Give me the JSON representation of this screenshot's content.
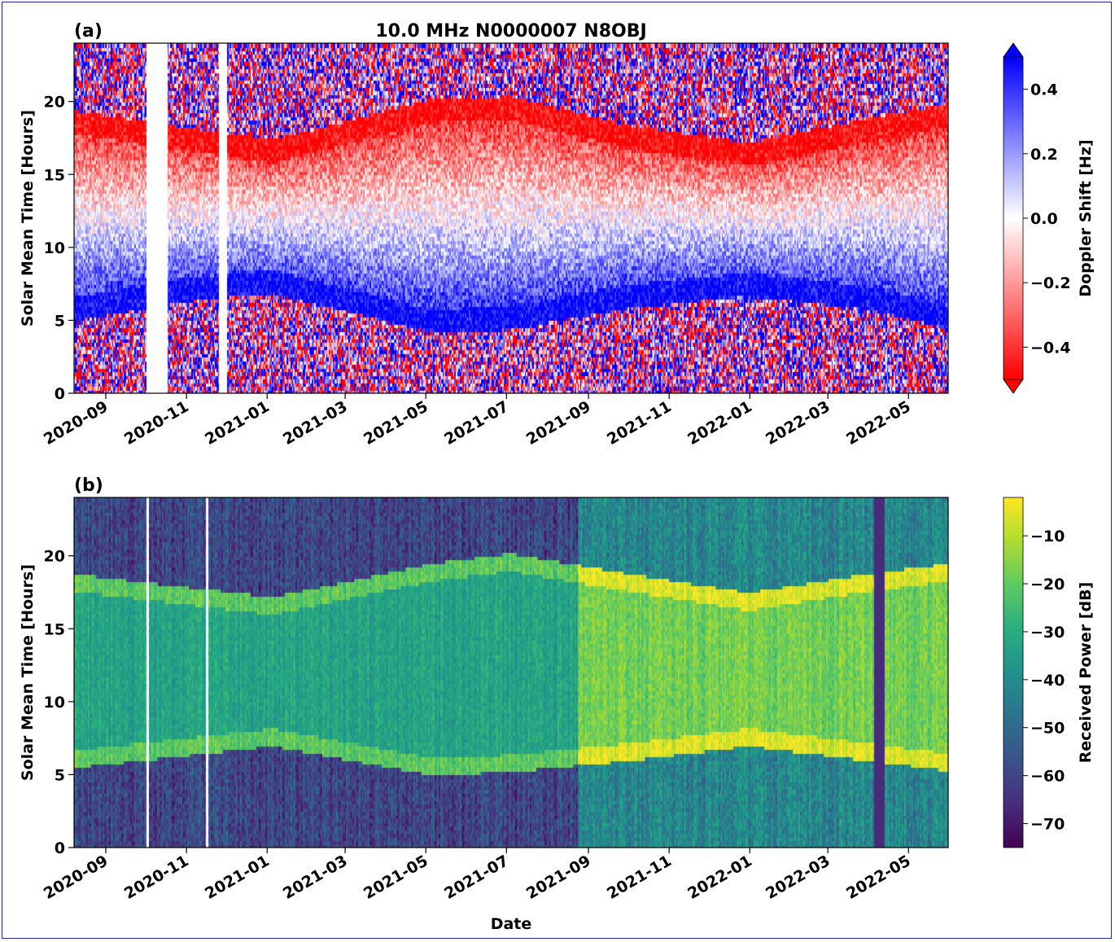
{
  "chart_data": [
    {
      "panel": "(a)",
      "type": "heatmap",
      "title": "10.0 MHz N0000007 N8OBJ",
      "ylabel": "Solar Mean Time [Hours]",
      "xlabel": "",
      "ylim": [
        0,
        24
      ],
      "y_ticks": [
        "0",
        "5",
        "10",
        "15",
        "20"
      ],
      "x_ticks": [
        "2020-09",
        "2020-11",
        "2021-01",
        "2021-03",
        "2021-05",
        "2021-07",
        "2021-09",
        "2021-11",
        "2022-01",
        "2022-03",
        "2022-05"
      ],
      "x_range": [
        "2020-08-08",
        "2022-05-31"
      ],
      "colorbar": {
        "label": "Doppler Shift [Hz]",
        "colormap": "bwr_r",
        "range": [
          -0.5,
          0.5
        ],
        "extend": "both",
        "ticks": [
          "−0.4",
          "−0.2",
          "0.0",
          "0.2",
          "0.4"
        ],
        "tick_values": [
          -0.4,
          -0.2,
          0.0,
          0.2,
          0.4
        ]
      },
      "features": {
        "blue_band_lower_edge_hours": [
          [
            0,
            5.4
          ],
          [
            90,
            6.8
          ],
          [
            150,
            7.3
          ],
          [
            270,
            4.6
          ],
          [
            330,
            4.8
          ],
          [
            420,
            6.3
          ],
          [
            510,
            7.1
          ],
          [
            600,
            6.2
          ],
          [
            660,
            4.9
          ]
        ],
        "red_band_upper_edge_hours": [
          [
            0,
            19.0
          ],
          [
            150,
            17.0
          ],
          [
            270,
            19.8
          ],
          [
            330,
            20.0
          ],
          [
            420,
            18.0
          ],
          [
            510,
            16.8
          ],
          [
            600,
            18.5
          ],
          [
            660,
            19.5
          ]
        ],
        "data_gaps_days": [
          55,
          70,
          110,
          115
        ]
      },
      "colors": {
        "positive": "#0000ff",
        "zero": "#ffffff",
        "negative": "#ff0000"
      }
    },
    {
      "panel": "(b)",
      "type": "heatmap",
      "title": "",
      "ylabel": "Solar Mean Time [Hours]",
      "xlabel": "Date",
      "ylim": [
        0,
        24
      ],
      "y_ticks": [
        "0",
        "5",
        "10",
        "15",
        "20"
      ],
      "x_ticks": [
        "2020-09",
        "2020-11",
        "2021-01",
        "2021-03",
        "2021-05",
        "2021-07",
        "2021-09",
        "2021-11",
        "2022-01",
        "2022-03",
        "2022-05"
      ],
      "x_range": [
        "2020-08-08",
        "2022-05-31"
      ],
      "colorbar": {
        "label": "Received Power [dB]",
        "colormap": "viridis",
        "range": [
          -75,
          -2
        ],
        "extend": "neither",
        "ticks": [
          "−10",
          "−20",
          "−30",
          "−40",
          "−50",
          "−60",
          "−70"
        ],
        "tick_values": [
          -10,
          -20,
          -30,
          -40,
          -50,
          -60,
          -70
        ]
      },
      "features": {
        "daytime_start_hours": [
          [
            0,
            5.5
          ],
          [
            150,
            7.0
          ],
          [
            270,
            5.0
          ],
          [
            330,
            5.2
          ],
          [
            420,
            6.0
          ],
          [
            510,
            7.0
          ],
          [
            600,
            6.0
          ],
          [
            660,
            5.3
          ]
        ],
        "daytime_end_hours": [
          [
            0,
            18.8
          ],
          [
            150,
            17.2
          ],
          [
            270,
            19.5
          ],
          [
            330,
            20.2
          ],
          [
            420,
            18.8
          ],
          [
            510,
            17.5
          ],
          [
            600,
            18.8
          ],
          [
            660,
            19.5
          ]
        ],
        "data_gaps_days": [
          55,
          56,
          100,
          101
        ],
        "low_power_stripe_days": [
          605,
          612
        ]
      }
    }
  ]
}
